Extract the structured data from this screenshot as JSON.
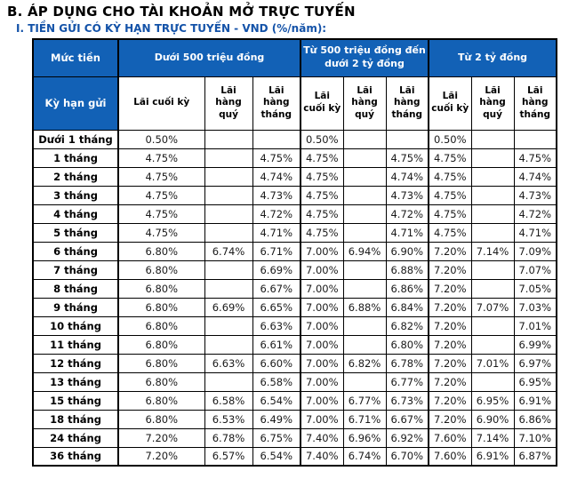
{
  "title": "B. ÁP DỤNG CHO TÀI KHOẢN MỞ TRỰC TUYẾN",
  "subtitle": "I. TIỀN GỬI CÓ KỲ HẠN TRỰC TUYẾN - VND (%/năm):",
  "colors": {
    "header_bg": "#1261b6",
    "subtitle_text": "#1352a8",
    "border": "#000000",
    "data_text": "#1a1a1a"
  },
  "table": {
    "amount_header": "Mức tiền",
    "term_header": "Kỳ hạn gửi",
    "groups": [
      "Dưới 500 triệu đồng",
      "Từ 500 triệu đồng đến\ndưới 2 tỷ đồng",
      "Từ 2 tỷ đồng"
    ],
    "sub_headers": [
      "Lãi cuối kỳ",
      "Lãi\nhàng\nquý",
      "Lãi\nhàng\ntháng",
      "Lãi\ncuối kỳ",
      "Lãi\nhàng\nquý",
      "Lãi\nhàng\ntháng",
      "Lãi\ncuối kỳ",
      "Lãi\nhàng\nquý",
      "Lãi\nhàng\ntháng"
    ],
    "rows": [
      {
        "term": "Dưới 1 tháng",
        "values": [
          "0.50%",
          "",
          "",
          "0.50%",
          "",
          "",
          "0.50%",
          "",
          ""
        ]
      },
      {
        "term": "1 tháng",
        "values": [
          "4.75%",
          "",
          "4.75%",
          "4.75%",
          "",
          "4.75%",
          "4.75%",
          "",
          "4.75%"
        ]
      },
      {
        "term": "2 tháng",
        "values": [
          "4.75%",
          "",
          "4.74%",
          "4.75%",
          "",
          "4.74%",
          "4.75%",
          "",
          "4.74%"
        ]
      },
      {
        "term": "3 tháng",
        "values": [
          "4.75%",
          "",
          "4.73%",
          "4.75%",
          "",
          "4.73%",
          "4.75%",
          "",
          "4.73%"
        ]
      },
      {
        "term": "4 tháng",
        "values": [
          "4.75%",
          "",
          "4.72%",
          "4.75%",
          "",
          "4.72%",
          "4.75%",
          "",
          "4.72%"
        ]
      },
      {
        "term": "5 tháng",
        "values": [
          "4.75%",
          "",
          "4.71%",
          "4.75%",
          "",
          "4.71%",
          "4.75%",
          "",
          "4.71%"
        ]
      },
      {
        "term": "6 tháng",
        "values": [
          "6.80%",
          "6.74%",
          "6.71%",
          "7.00%",
          "6.94%",
          "6.90%",
          "7.20%",
          "7.14%",
          "7.09%"
        ]
      },
      {
        "term": "7 tháng",
        "values": [
          "6.80%",
          "",
          "6.69%",
          "7.00%",
          "",
          "6.88%",
          "7.20%",
          "",
          "7.07%"
        ]
      },
      {
        "term": "8 tháng",
        "values": [
          "6.80%",
          "",
          "6.67%",
          "7.00%",
          "",
          "6.86%",
          "7.20%",
          "",
          "7.05%"
        ]
      },
      {
        "term": "9 tháng",
        "values": [
          "6.80%",
          "6.69%",
          "6.65%",
          "7.00%",
          "6.88%",
          "6.84%",
          "7.20%",
          "7.07%",
          "7.03%"
        ]
      },
      {
        "term": "10 tháng",
        "values": [
          "6.80%",
          "",
          "6.63%",
          "7.00%",
          "",
          "6.82%",
          "7.20%",
          "",
          "7.01%"
        ]
      },
      {
        "term": "11 tháng",
        "values": [
          "6.80%",
          "",
          "6.61%",
          "7.00%",
          "",
          "6.80%",
          "7.20%",
          "",
          "6.99%"
        ]
      },
      {
        "term": "12 tháng",
        "values": [
          "6.80%",
          "6.63%",
          "6.60%",
          "7.00%",
          "6.82%",
          "6.78%",
          "7.20%",
          "7.01%",
          "6.97%"
        ]
      },
      {
        "term": "13 tháng",
        "values": [
          "6.80%",
          "",
          "6.58%",
          "7.00%",
          "",
          "6.77%",
          "7.20%",
          "",
          "6.95%"
        ]
      },
      {
        "term": "15 tháng",
        "values": [
          "6.80%",
          "6.58%",
          "6.54%",
          "7.00%",
          "6.77%",
          "6.73%",
          "7.20%",
          "6.95%",
          "6.91%"
        ]
      },
      {
        "term": "18 tháng",
        "values": [
          "6.80%",
          "6.53%",
          "6.49%",
          "7.00%",
          "6.71%",
          "6.67%",
          "7.20%",
          "6.90%",
          "6.86%"
        ]
      },
      {
        "term": "24 tháng",
        "values": [
          "7.20%",
          "6.78%",
          "6.75%",
          "7.40%",
          "6.96%",
          "6.92%",
          "7.60%",
          "7.14%",
          "7.10%"
        ]
      },
      {
        "term": "36 tháng",
        "values": [
          "7.20%",
          "6.57%",
          "6.54%",
          "7.40%",
          "6.74%",
          "6.70%",
          "7.60%",
          "6.91%",
          "6.87%"
        ]
      }
    ]
  }
}
